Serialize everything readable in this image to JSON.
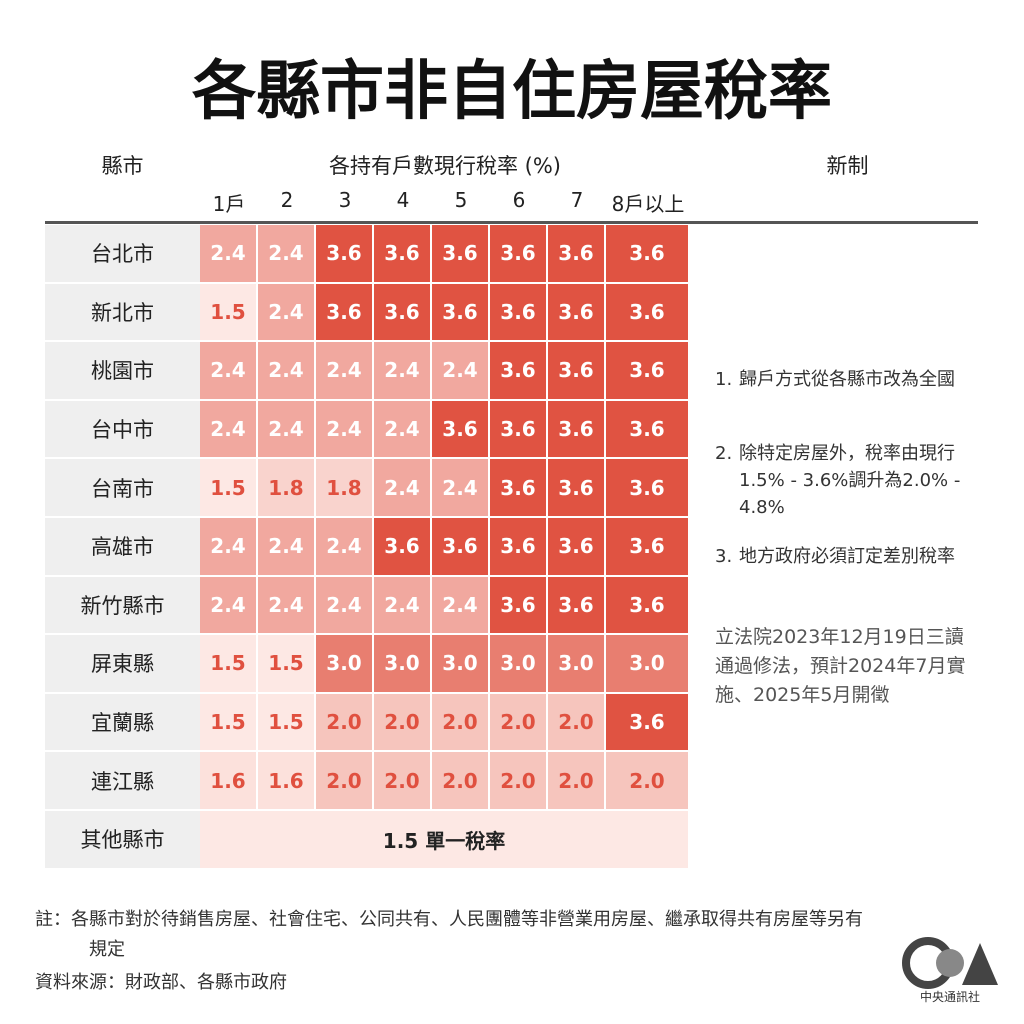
{
  "header": {
    "title": "各縣市非自住房屋稅率"
  },
  "table": {
    "label_header": "縣市",
    "rate_header": "各持有戶數現行稅率 (%)",
    "new_header": "新制",
    "columns": [
      "1戶",
      "2",
      "3",
      "4",
      "5",
      "6",
      "7",
      "8戶以上"
    ],
    "rows": [
      {
        "label": "台北市",
        "cells": [
          "2.4",
          "2.4",
          "3.6",
          "3.6",
          "3.6",
          "3.6",
          "3.6",
          "3.6"
        ]
      },
      {
        "label": "新北市",
        "cells": [
          "1.5",
          "2.4",
          "3.6",
          "3.6",
          "3.6",
          "3.6",
          "3.6",
          "3.6"
        ]
      },
      {
        "label": "桃園市",
        "cells": [
          "2.4",
          "2.4",
          "2.4",
          "2.4",
          "2.4",
          "3.6",
          "3.6",
          "3.6"
        ]
      },
      {
        "label": "台中市",
        "cells": [
          "2.4",
          "2.4",
          "2.4",
          "2.4",
          "3.6",
          "3.6",
          "3.6",
          "3.6"
        ]
      },
      {
        "label": "台南市",
        "cells": [
          "1.5",
          "1.8",
          "1.8",
          "2.4",
          "2.4",
          "3.6",
          "3.6",
          "3.6"
        ]
      },
      {
        "label": "高雄市",
        "cells": [
          "2.4",
          "2.4",
          "2.4",
          "3.6",
          "3.6",
          "3.6",
          "3.6",
          "3.6"
        ]
      },
      {
        "label": "新竹縣市",
        "cells": [
          "2.4",
          "2.4",
          "2.4",
          "2.4",
          "2.4",
          "3.6",
          "3.6",
          "3.6"
        ]
      },
      {
        "label": "屏東縣",
        "cells": [
          "1.5",
          "1.5",
          "3.0",
          "3.0",
          "3.0",
          "3.0",
          "3.0",
          "3.0"
        ]
      },
      {
        "label": "宜蘭縣",
        "cells": [
          "1.5",
          "1.5",
          "2.0",
          "2.0",
          "2.0",
          "2.0",
          "2.0",
          "3.6"
        ]
      },
      {
        "label": "連江縣",
        "cells": [
          "1.6",
          "1.6",
          "2.0",
          "2.0",
          "2.0",
          "2.0",
          "2.0",
          "2.0"
        ]
      }
    ],
    "other": {
      "label": "其他縣市",
      "text": "1.5 單一稅率"
    }
  },
  "notes": [
    {
      "number": "1.",
      "text": "歸戶方式從各縣市改為全國"
    },
    {
      "number": "2.",
      "text": "除特定房屋外，稅率由現行1.5% - 3.6%調升為2.0% - 4.8%"
    },
    {
      "number": "3.",
      "text": "地方政府必須訂定差別稅率"
    }
  ],
  "legislation": "立法院2023年12月19日三讀通過修法，預計2024年7月實施、2025年5月開徵",
  "footnote": "註：各縣市對於待銷售房屋、社會住宅、公同共有、人民團體等非營業用房屋、繼承取得共有房屋等另有規定",
  "source": "資料來源：財政部、各縣市政府",
  "logo": "中央通訊社"
}
